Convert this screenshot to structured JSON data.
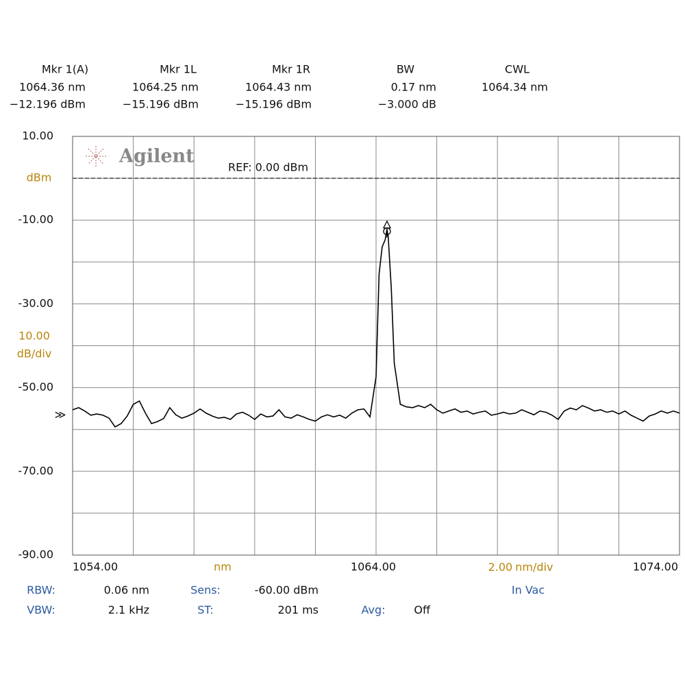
{
  "chart_data": {
    "type": "line",
    "header": [
      {
        "name": "Mkr 1(A)",
        "lines": [
          "1064.36 nm",
          "−12.196 dBm"
        ]
      },
      {
        "name": "Mkr 1L",
        "lines": [
          "1064.25 nm",
          "−15.196 dBm"
        ]
      },
      {
        "name": "Mkr 1R",
        "lines": [
          "1064.43 nm",
          "−15.196 dBm"
        ]
      },
      {
        "name": "BW",
        "lines": [
          "0.17 nm",
          "−3.000 dB"
        ]
      },
      {
        "name": "CWL",
        "lines": [
          "1064.34 nm"
        ]
      }
    ],
    "brand": "Agilent",
    "reference": {
      "value": 0,
      "label": "REF: 0.00 dBm"
    },
    "y_unit": "dBm",
    "y_div": {
      "value": 10,
      "label": "10.00"
    },
    "y_div_unit": "dB/div",
    "x_unit": "nm",
    "x_div": {
      "value": 2,
      "label": "2.00"
    },
    "x_div_unit": "nm/div",
    "sens_marker": "≫",
    "xlim": [
      1054,
      1074
    ],
    "xticks": [
      {
        "value": 1054,
        "label": "1054.00"
      },
      {
        "value": 1064,
        "label": "1064.00"
      },
      {
        "value": 1074,
        "label": "1074.00"
      }
    ],
    "ylim": [
      -90,
      10
    ],
    "yticks": [
      {
        "value": 10,
        "label": "10.00"
      },
      {
        "value": -10,
        "label": "-10.00"
      },
      {
        "value": -30,
        "label": "-30.00"
      },
      {
        "value": -50,
        "label": "-50.00"
      },
      {
        "value": -70,
        "label": "-70.00"
      },
      {
        "value": -90,
        "label": "-90.00"
      }
    ],
    "grid": true,
    "x": [
      1054.0,
      1054.2,
      1054.4,
      1054.6,
      1054.8,
      1055.0,
      1055.2,
      1055.4,
      1055.6,
      1055.8,
      1056.0,
      1056.2,
      1056.4,
      1056.6,
      1056.8,
      1057.0,
      1057.2,
      1057.4,
      1057.6,
      1057.8,
      1058.0,
      1058.2,
      1058.4,
      1058.6,
      1058.8,
      1059.0,
      1059.2,
      1059.4,
      1059.6,
      1059.8,
      1060.0,
      1060.2,
      1060.4,
      1060.6,
      1060.8,
      1061.0,
      1061.2,
      1061.4,
      1061.6,
      1061.8,
      1062.0,
      1062.2,
      1062.4,
      1062.6,
      1062.8,
      1063.0,
      1063.2,
      1063.4,
      1063.6,
      1063.8,
      1064.0,
      1064.1,
      1064.2,
      1064.3,
      1064.36,
      1064.4,
      1064.5,
      1064.6,
      1064.8,
      1065.0,
      1065.2,
      1065.4,
      1065.6,
      1065.8,
      1066.0,
      1066.2,
      1066.4,
      1066.6,
      1066.8,
      1067.0,
      1067.2,
      1067.4,
      1067.6,
      1067.8,
      1068.0,
      1068.2,
      1068.4,
      1068.6,
      1068.8,
      1069.0,
      1069.2,
      1069.4,
      1069.6,
      1069.8,
      1070.0,
      1070.2,
      1070.4,
      1070.6,
      1070.8,
      1071.0,
      1071.2,
      1071.4,
      1071.6,
      1071.8,
      1072.0,
      1072.2,
      1072.4,
      1072.6,
      1072.8,
      1073.0,
      1073.2,
      1073.4,
      1073.6,
      1073.8,
      1074.0
    ],
    "series": [
      {
        "color": "#000000",
        "values": [
          -55.3,
          -54.8,
          -55.6,
          -56.6,
          -56.3,
          -56.6,
          -57.3,
          -59.4,
          -58.6,
          -56.8,
          -54.0,
          -53.2,
          -56.1,
          -58.6,
          -58.1,
          -57.4,
          -54.8,
          -56.5,
          -57.3,
          -56.8,
          -56.1,
          -55.1,
          -56.1,
          -56.8,
          -57.3,
          -57.1,
          -57.6,
          -56.3,
          -55.9,
          -56.6,
          -57.6,
          -56.3,
          -57.0,
          -56.8,
          -55.3,
          -57.0,
          -57.3,
          -56.5,
          -57.0,
          -57.6,
          -58.0,
          -57.0,
          -56.5,
          -57.0,
          -56.6,
          -57.3,
          -56.1,
          -55.3,
          -55.1,
          -57.0,
          -47.4,
          -22.9,
          -16.4,
          -14.7,
          -12.2,
          -13.9,
          -26.2,
          -44.2,
          -54.0,
          -54.6,
          -54.8,
          -54.3,
          -54.8,
          -54.0,
          -55.3,
          -56.1,
          -55.6,
          -55.1,
          -55.9,
          -55.6,
          -56.3,
          -55.9,
          -55.6,
          -56.6,
          -56.3,
          -55.9,
          -56.3,
          -56.1,
          -55.3,
          -55.9,
          -56.5,
          -55.6,
          -55.9,
          -56.6,
          -57.6,
          -55.6,
          -54.9,
          -55.3,
          -54.3,
          -54.9,
          -55.6,
          -55.3,
          -55.9,
          -55.6,
          -56.3,
          -55.6,
          -56.6,
          -57.3,
          -58.0,
          -56.8,
          -56.3,
          -55.6,
          -56.1,
          -55.6,
          -56.1
        ]
      }
    ],
    "footer": [
      [
        {
          "label": "RBW:",
          "value": "0.06 nm"
        },
        {
          "label": "Sens:",
          "value": "-60.00 dBm"
        }
      ],
      [
        {
          "label": "VBW:",
          "value": "2.1 kHz"
        },
        {
          "label": "ST:",
          "value": "201 ms"
        },
        {
          "label": "Avg:",
          "value": "Off"
        }
      ]
    ],
    "footer_note": "In Vac"
  }
}
